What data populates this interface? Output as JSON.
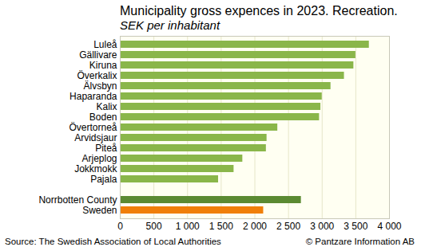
{
  "chart_data": {
    "type": "bar",
    "orientation": "horizontal",
    "title": "Municipality gross expences in 2023. Recreation.",
    "subtitle": "SEK per inhabitant",
    "source": "Source: The Swedish Association of Local Authorities",
    "credit": "© Pantzare Information AB",
    "categories": [
      "Luleå",
      "Gällivare",
      "Kiruna",
      "Överkalix",
      "Älvsbyn",
      "Haparanda",
      "Kalix",
      "Boden",
      "Övertorneå",
      "Arvidsjaur",
      "Piteå",
      "Arjeplog",
      "Jokkmokk",
      "Pajala",
      null,
      "Norrbotten County",
      "Sweden"
    ],
    "values": [
      3700,
      3500,
      3470,
      3330,
      3130,
      3000,
      2980,
      2960,
      2340,
      2180,
      2170,
      1820,
      1690,
      1460,
      null,
      2690,
      2130
    ],
    "colors": [
      "#8ab64a",
      "#8ab64a",
      "#8ab64a",
      "#8ab64a",
      "#8ab64a",
      "#8ab64a",
      "#8ab64a",
      "#8ab64a",
      "#8ab64a",
      "#8ab64a",
      "#8ab64a",
      "#8ab64a",
      "#8ab64a",
      "#8ab64a",
      null,
      "#5b8a32",
      "#f07f09"
    ],
    "xlim": [
      0,
      4000
    ],
    "xticks": [
      0,
      500,
      {
        "value": 1000,
        "label": "1 000"
      },
      {
        "value": 1500,
        "label": "1 500"
      },
      {
        "value": 2000,
        "label": "2 000"
      },
      {
        "value": 2500,
        "label": "2 500"
      },
      {
        "value": 3000,
        "label": "3 000"
      },
      {
        "value": 3500,
        "label": "3 500"
      },
      {
        "value": 4000,
        "label": "4 000"
      }
    ],
    "grid": true
  }
}
